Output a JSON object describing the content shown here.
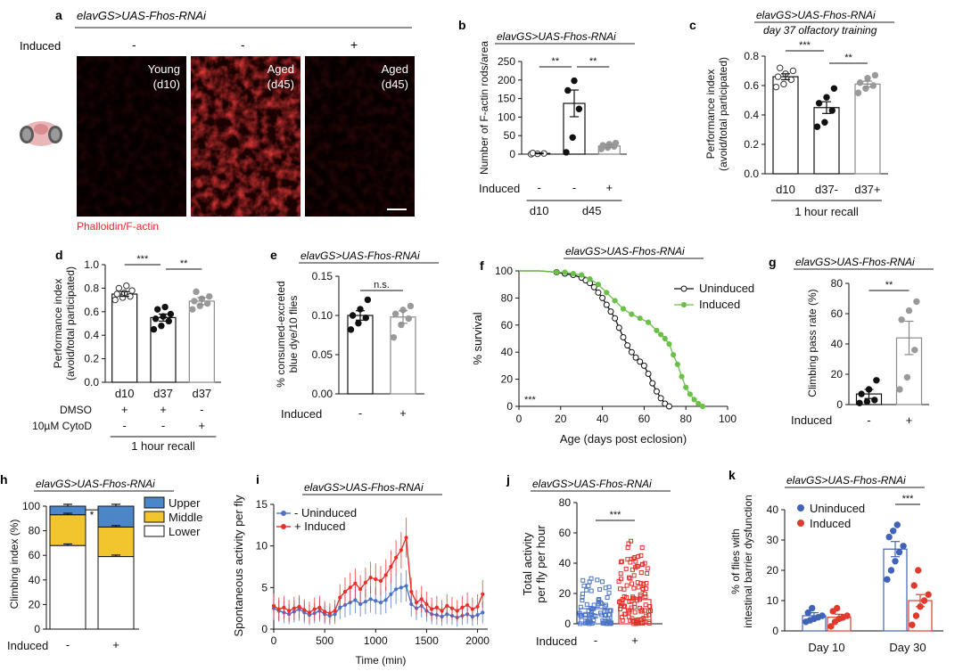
{
  "panels": {
    "a": {
      "letter": "a",
      "genotype": "elavGS>UAS-Fhos-RNAi",
      "induced_label": "Induced",
      "conditions": [
        {
          "induced": "-",
          "label1": "Young",
          "label2": "(d10)"
        },
        {
          "induced": "-",
          "label1": "Aged",
          "label2": "(d45)"
        },
        {
          "induced": "+",
          "label1": "Aged",
          "label2": "(d45)"
        }
      ],
      "stain": "Phalloidin/F-actin",
      "colors": {
        "stain": "#e8262a",
        "image_bg": "#050000"
      }
    },
    "b": {
      "letter": "b",
      "genotype": "elavGS>UAS-Fhos-RNAi"
    },
    "c": {
      "letter": "c",
      "genotype": "elavGS>UAS-Fhos-RNAi",
      "subtitle": "day 37 olfactory training"
    },
    "d": {
      "letter": "d"
    },
    "e": {
      "letter": "e",
      "genotype": "elavGS>UAS-Fhos-RNAi"
    },
    "f": {
      "letter": "f",
      "genotype": "elavGS>UAS-Fhos-RNAi"
    },
    "g": {
      "letter": "g",
      "genotype": "elavGS>UAS-Fhos-RNAi"
    },
    "h": {
      "letter": "h",
      "genotype": "elavGS>UAS-Fhos-RNAi"
    },
    "i": {
      "letter": "i",
      "genotype": "elavGS>UAS-Fhos-RNAi"
    },
    "j": {
      "letter": "j",
      "genotype": "elavGS>UAS-Fhos-RNAi"
    },
    "k": {
      "letter": "k",
      "genotype": "elavGS>UAS-Fhos-RNAi"
    }
  },
  "chart_data": [
    {
      "id": "b",
      "type": "bar",
      "ylabel": "Number of F-actin rods/area",
      "ylim": [
        0,
        250
      ],
      "yticks": [
        0,
        50,
        100,
        150,
        200,
        250
      ],
      "categories": [
        "-",
        "-",
        "+"
      ],
      "row_label": "Induced",
      "groups": [
        {
          "label": "d10",
          "from": 0,
          "to": 0
        },
        {
          "label": "d45",
          "from": 1,
          "to": 2
        }
      ],
      "values": [
        2,
        137,
        22
      ],
      "errors": [
        1,
        36,
        4
      ],
      "points": [
        [
          0,
          1,
          2,
          3
        ],
        [
          5,
          45,
          122,
          172,
          198
        ],
        [
          14,
          18,
          21,
          24,
          27,
          30
        ]
      ],
      "point_fill": [
        "open",
        "black",
        "gray"
      ],
      "significance": [
        {
          "from": 0,
          "to": 1,
          "label": "**"
        },
        {
          "from": 1,
          "to": 2,
          "label": "**"
        }
      ]
    },
    {
      "id": "c",
      "type": "bar",
      "ylabel": "Performance index (avoid/total participated)",
      "ylim": [
        0,
        0.8
      ],
      "yticks": [
        0,
        0.2,
        0.4,
        0.6,
        0.8
      ],
      "categories": [
        "d10",
        "d37-",
        "d37+"
      ],
      "xlabel": "1 hour recall",
      "values": [
        0.66,
        0.45,
        0.61
      ],
      "errors": [
        0.02,
        0.04,
        0.02
      ],
      "points": [
        [
          0.59,
          0.61,
          0.64,
          0.66,
          0.68,
          0.7,
          0.72
        ],
        [
          0.32,
          0.35,
          0.43,
          0.48,
          0.52,
          0.58
        ],
        [
          0.55,
          0.58,
          0.6,
          0.62,
          0.65,
          0.67
        ]
      ],
      "point_fill": [
        "open",
        "black",
        "gray"
      ],
      "significance": [
        {
          "from": 0,
          "to": 1,
          "label": "***"
        },
        {
          "from": 1,
          "to": 2,
          "label": "**"
        }
      ]
    },
    {
      "id": "d",
      "type": "bar",
      "ylabel": "Performance index (avoid/total participated)",
      "ylim": [
        0,
        1.0
      ],
      "yticks": [
        0,
        0.2,
        0.4,
        0.6,
        0.8,
        1.0
      ],
      "categories": [
        "d10",
        "d37",
        "d37"
      ],
      "rows": [
        {
          "label": "DMSO",
          "values": [
            "+",
            "+",
            "-"
          ]
        },
        {
          "label": "10µM CytoD",
          "values": [
            "-",
            "-",
            "+"
          ]
        }
      ],
      "xlabel": "1 hour recall",
      "values": [
        0.75,
        0.55,
        0.69
      ],
      "errors": [
        0.02,
        0.03,
        0.03
      ],
      "points": [
        [
          0.7,
          0.72,
          0.73,
          0.75,
          0.76,
          0.78,
          0.8,
          0.82
        ],
        [
          0.45,
          0.48,
          0.52,
          0.54,
          0.56,
          0.58,
          0.62,
          0.64
        ],
        [
          0.62,
          0.65,
          0.67,
          0.69,
          0.71,
          0.73,
          0.77
        ]
      ],
      "point_fill": [
        "open",
        "black",
        "gray"
      ],
      "significance": [
        {
          "from": 0,
          "to": 1,
          "label": "***"
        },
        {
          "from": 1,
          "to": 2,
          "label": "**"
        }
      ]
    },
    {
      "id": "e",
      "type": "bar",
      "ylabel": "% consumed-excreted blue dye/10 flies",
      "ylim": [
        0,
        0.15
      ],
      "yticks": [
        0,
        0.05,
        0.1,
        0.15
      ],
      "yticklabels": [
        "0.00",
        "0.05",
        "0.10",
        "0.15"
      ],
      "categories": [
        "-",
        "+"
      ],
      "row_label": "Induced",
      "values": [
        0.1,
        0.098
      ],
      "errors": [
        0.006,
        0.008
      ],
      "points": [
        [
          0.082,
          0.09,
          0.097,
          0.1,
          0.108,
          0.12
        ],
        [
          0.072,
          0.088,
          0.096,
          0.102,
          0.107,
          0.112
        ]
      ],
      "point_fill": [
        "black",
        "gray"
      ],
      "significance": [
        {
          "from": 0,
          "to": 1,
          "label": "n.s."
        }
      ]
    },
    {
      "id": "f",
      "type": "line",
      "xlabel": "Age (days post eclosion)",
      "ylabel": "% survival",
      "xlim": [
        0,
        100
      ],
      "ylim": [
        0,
        100
      ],
      "xticks": [
        0,
        20,
        40,
        60,
        80,
        100
      ],
      "yticks": [
        0,
        20,
        40,
        60,
        80,
        100
      ],
      "annotation": "***",
      "legend_position": "top-right",
      "series": [
        {
          "name": "Uninduced",
          "color": "#111111",
          "marker": "open-circle",
          "x": [
            0,
            10,
            18,
            22,
            26,
            30,
            32,
            34,
            36,
            38,
            40,
            42,
            44,
            46,
            48,
            50,
            52,
            54,
            56,
            58,
            60,
            62,
            64,
            66,
            68,
            70,
            72
          ],
          "y": [
            100,
            100,
            99,
            98,
            97,
            95,
            93,
            91,
            88,
            84,
            80,
            75,
            70,
            65,
            58,
            51,
            45,
            40,
            36,
            33,
            30,
            24,
            17,
            11,
            6,
            2,
            0
          ]
        },
        {
          "name": "Induced",
          "color": "#6cc04a",
          "marker": "filled-circle",
          "x": [
            0,
            10,
            18,
            22,
            26,
            30,
            34,
            38,
            42,
            46,
            50,
            54,
            58,
            62,
            66,
            68,
            70,
            72,
            74,
            76,
            78,
            80,
            82,
            84,
            86,
            88
          ],
          "y": [
            100,
            100,
            99,
            99,
            98,
            97,
            94,
            90,
            84,
            78,
            72,
            68,
            65,
            62,
            56,
            53,
            50,
            46,
            38,
            31,
            22,
            14,
            9,
            5,
            2,
            0
          ]
        }
      ]
    },
    {
      "id": "g",
      "type": "bar",
      "ylabel": "Climbing pass rate (%)",
      "ylim": [
        0,
        80
      ],
      "yticks": [
        0,
        20,
        40,
        60,
        80
      ],
      "categories": [
        "-",
        "+"
      ],
      "row_label": "Induced",
      "values": [
        7,
        44
      ],
      "errors": [
        3,
        11
      ],
      "points": [
        [
          1,
          2,
          3,
          7,
          10,
          16
        ],
        [
          10,
          18,
          36,
          56,
          62,
          68
        ]
      ],
      "point_fill": [
        "black",
        "gray"
      ],
      "significance": [
        {
          "from": 0,
          "to": 1,
          "label": "**"
        }
      ]
    },
    {
      "id": "h",
      "type": "bar",
      "stacked": true,
      "ylabel": "Climbing index (%)",
      "ylim": [
        0,
        100
      ],
      "yticks": [
        0,
        20,
        40,
        60,
        80,
        100
      ],
      "categories": [
        "-",
        "+"
      ],
      "row_label": "Induced",
      "legend_position": "top-right",
      "series": [
        {
          "name": "Lower",
          "color": "#ffffff",
          "values": [
            68,
            59
          ]
        },
        {
          "name": "Middle",
          "color": "#f2c52f",
          "values": [
            25,
            24
          ]
        },
        {
          "name": "Upper",
          "color": "#4a86c8",
          "values": [
            7,
            17
          ]
        }
      ],
      "significance": [
        {
          "from": 0,
          "to": 1,
          "label": "*"
        }
      ]
    },
    {
      "id": "i",
      "type": "line",
      "xlabel": "Time (min)",
      "ylabel": "Spontaneous activity per fly",
      "xlim": [
        0,
        2100
      ],
      "ylim": [
        0,
        15
      ],
      "xticks": [
        0,
        500,
        1000,
        1500,
        2000
      ],
      "yticks": [
        0,
        5,
        10,
        15
      ],
      "legend_position": "top-left",
      "series": [
        {
          "name": "- Uninduced",
          "color": "#4a73c9",
          "x": [
            0,
            50,
            100,
            150,
            200,
            250,
            300,
            350,
            400,
            450,
            500,
            550,
            600,
            650,
            700,
            750,
            800,
            850,
            900,
            950,
            1000,
            1050,
            1100,
            1150,
            1200,
            1250,
            1300,
            1350,
            1400,
            1450,
            1500,
            1550,
            1600,
            1650,
            1700,
            1750,
            1800,
            1850,
            1900,
            1950,
            2000,
            2050
          ],
          "y": [
            2.5,
            2.2,
            2.0,
            1.8,
            2.1,
            2.4,
            2.0,
            1.7,
            1.9,
            2.2,
            1.8,
            1.6,
            1.8,
            2.6,
            2.9,
            3.2,
            3.5,
            3.0,
            3.3,
            3.6,
            3.4,
            3.2,
            3.5,
            4.2,
            4.8,
            5.0,
            5.2,
            3.0,
            2.5,
            2.8,
            2.2,
            1.8,
            1.7,
            1.5,
            1.8,
            1.6,
            1.4,
            1.6,
            1.8,
            1.5,
            1.7,
            2.0
          ],
          "errors": [
            1.4,
            1.3,
            1.3,
            1.2,
            1.3,
            1.4,
            1.3,
            1.2,
            1.2,
            1.3,
            1.2,
            1.1,
            1.2,
            1.4,
            1.5,
            1.5,
            1.6,
            1.5,
            1.5,
            1.6,
            1.6,
            1.5,
            1.6,
            1.7,
            1.8,
            1.8,
            1.9,
            1.5,
            1.4,
            1.4,
            1.3,
            1.2,
            1.2,
            1.1,
            1.2,
            1.1,
            1.1,
            1.1,
            1.2,
            1.1,
            1.2,
            1.3
          ]
        },
        {
          "name": "+ Induced",
          "color": "#e8302a",
          "x": [
            0,
            50,
            100,
            150,
            200,
            250,
            300,
            350,
            400,
            450,
            500,
            550,
            600,
            650,
            700,
            750,
            800,
            850,
            900,
            950,
            1000,
            1050,
            1100,
            1150,
            1200,
            1250,
            1300,
            1350,
            1400,
            1450,
            1500,
            1550,
            1600,
            1650,
            1700,
            1750,
            1800,
            1850,
            1900,
            1950,
            2000,
            2050
          ],
          "y": [
            2.8,
            2.4,
            2.6,
            2.2,
            2.5,
            2.7,
            2.3,
            2.0,
            2.4,
            2.6,
            2.1,
            1.9,
            2.2,
            3.8,
            4.5,
            5.0,
            5.5,
            4.8,
            5.6,
            6.2,
            6.0,
            5.8,
            6.5,
            7.5,
            8.6,
            9.5,
            11.0,
            4.5,
            3.2,
            3.6,
            3.0,
            2.4,
            2.6,
            2.2,
            2.8,
            2.5,
            2.2,
            2.6,
            2.9,
            2.4,
            2.7,
            4.2
          ],
          "errors": [
            1.5,
            1.4,
            1.4,
            1.3,
            1.4,
            1.4,
            1.3,
            1.3,
            1.4,
            1.4,
            1.3,
            1.2,
            1.3,
            1.6,
            1.7,
            1.8,
            1.8,
            1.7,
            1.8,
            1.9,
            1.9,
            1.8,
            1.9,
            2.0,
            2.1,
            2.2,
            2.4,
            1.7,
            1.5,
            1.6,
            1.5,
            1.4,
            1.4,
            1.3,
            1.4,
            1.4,
            1.3,
            1.4,
            1.5,
            1.4,
            1.5,
            1.7
          ]
        }
      ]
    },
    {
      "id": "j",
      "type": "bar",
      "ylabel": "Total activity per fly per hour",
      "ylim": [
        0,
        80
      ],
      "yticks": [
        0,
        20,
        40,
        60,
        80
      ],
      "categories": [
        "-",
        "+"
      ],
      "row_label": "Induced",
      "colors": [
        "#4a73c9",
        "#e8302a"
      ],
      "values": [
        10,
        16
      ],
      "errors": [
        1,
        1.5
      ],
      "n_points": [
        80,
        110
      ],
      "point_max": [
        30,
        58
      ],
      "significance": [
        {
          "from": 0,
          "to": 1,
          "label": "***"
        }
      ]
    },
    {
      "id": "k",
      "type": "bar",
      "ylabel": "% of flies with intestinal barrier dysfunction",
      "ylim": [
        0,
        40
      ],
      "yticks": [
        0,
        10,
        20,
        30,
        40
      ],
      "categories": [
        "Day 10",
        "Day 30"
      ],
      "legend_position": "top-left",
      "series": [
        {
          "name": "Uninduced",
          "color": "#3f63b8",
          "values": [
            5,
            27
          ],
          "errors": [
            1,
            2.5
          ],
          "points": [
            [
              3,
              3.5,
              4,
              4.5,
              5,
              6,
              7.5
            ],
            [
              17,
              20,
              23,
              26,
              28,
              31,
              33,
              35
            ]
          ]
        },
        {
          "name": "Induced",
          "color": "#e03a2f",
          "values": [
            4.5,
            10
          ],
          "errors": [
            1,
            2
          ],
          "points": [
            [
              1.5,
              3,
              4,
              4.5,
              5,
              6.5,
              7.5
            ],
            [
              2,
              5,
              8,
              10,
              12,
              15,
              20
            ]
          ]
        }
      ],
      "significance": [
        {
          "group": 1,
          "label": "***"
        }
      ]
    }
  ]
}
